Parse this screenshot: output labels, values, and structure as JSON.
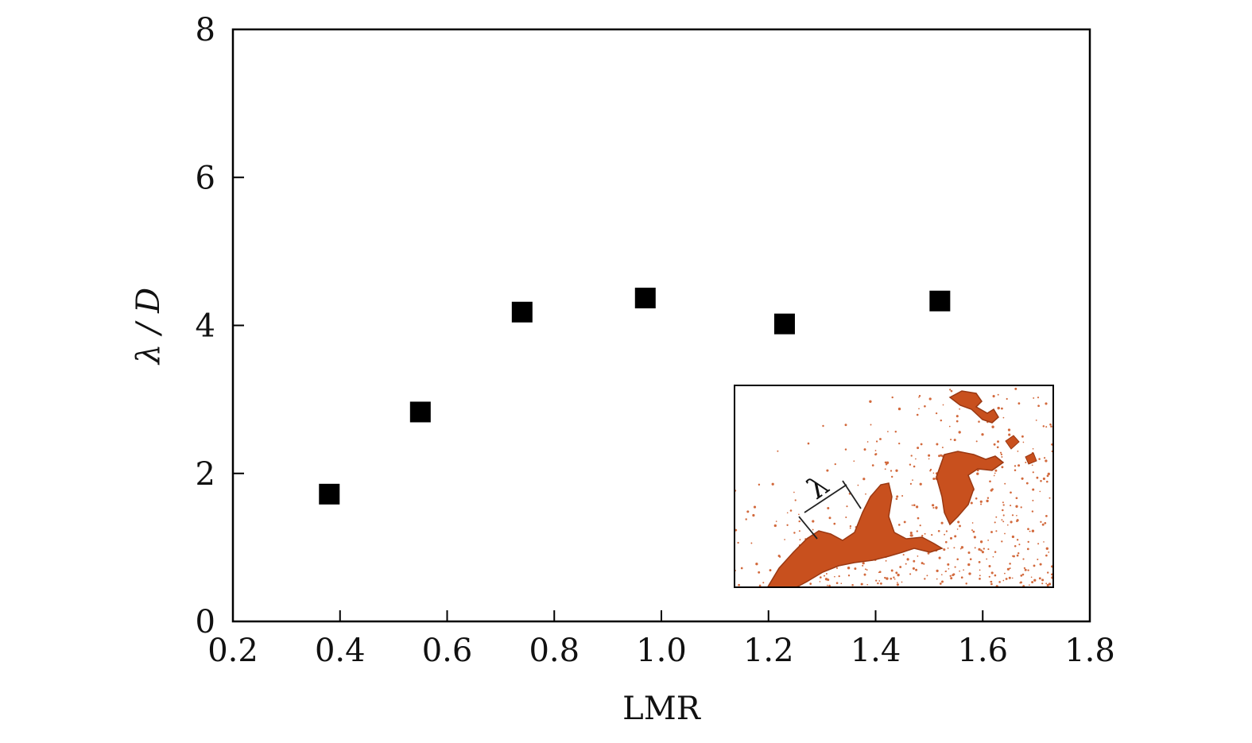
{
  "chart_data": {
    "type": "scatter",
    "xlabel": "LMR",
    "ylabel": "λ / D",
    "xlim": [
      0.2,
      1.8
    ],
    "ylim": [
      0,
      8
    ],
    "xticks": [
      "0.2",
      "0.4",
      "0.6",
      "0.8",
      "1.0",
      "1.2",
      "1.4",
      "1.6",
      "1.8"
    ],
    "yticks": [
      "0",
      "2",
      "4",
      "6",
      "8"
    ],
    "grid": false,
    "marker": "square",
    "series": [
      {
        "x": [
          0.38,
          0.55,
          0.74,
          0.97,
          1.23,
          1.52
        ],
        "y": [
          1.72,
          2.83,
          4.18,
          4.37,
          4.02,
          4.33
        ]
      }
    ],
    "inset": {
      "description": "3D iso-surface rendering of jet breakup",
      "label": "λ"
    }
  },
  "colors": {
    "marker": "#000000",
    "axis": "#000000",
    "inset_surface": "#c8501e",
    "inset_particles": "#d2693c"
  }
}
